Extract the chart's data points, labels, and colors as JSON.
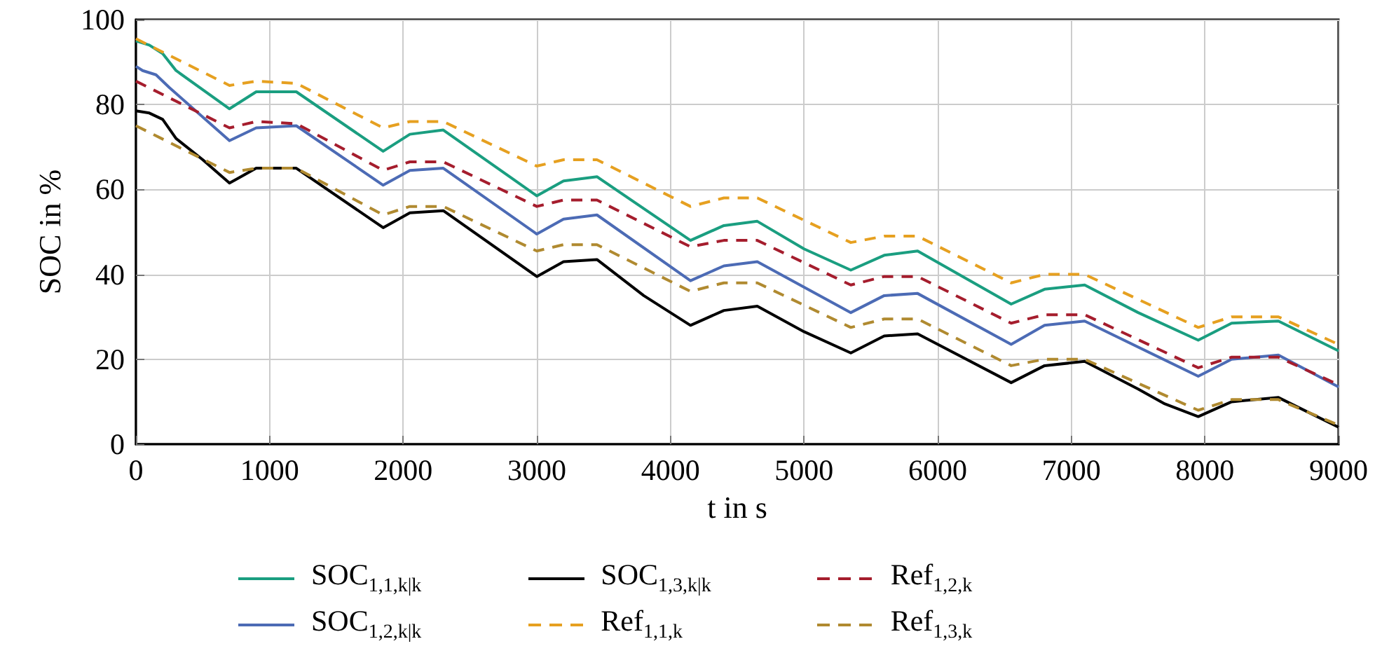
{
  "chart_data": {
    "type": "line",
    "xlabel": "t in s",
    "ylabel": "SOC in %",
    "xlim": [
      0,
      9000
    ],
    "xticks": [
      0,
      1000,
      2000,
      3000,
      4000,
      5000,
      6000,
      7000,
      8000,
      9000
    ],
    "ylim": [
      0,
      100
    ],
    "yticks": [
      0,
      20,
      40,
      60,
      80,
      100
    ],
    "grid": true,
    "legend": "bottom",
    "marker": "none",
    "series": [
      {
        "name": "SOC$_{1,1,k|k}$",
        "color": "#1a9e80",
        "line_style": "solid",
        "x": [
          0,
          100,
          200,
          300,
          700,
          900,
          1200,
          1850,
          2050,
          2300,
          3000,
          3200,
          3450,
          4150,
          4400,
          4650,
          5000,
          5350,
          5600,
          5850,
          6550,
          6800,
          7100,
          7500,
          7950,
          8200,
          8550,
          9000
        ],
        "values": [
          95,
          94,
          92,
          88,
          79,
          83,
          83,
          69,
          73,
          74,
          58.5,
          62,
          63,
          48,
          51.5,
          52.5,
          46,
          41,
          44.5,
          45.5,
          33,
          36.5,
          37.5,
          31,
          24.5,
          28.5,
          29,
          22
        ]
      },
      {
        "name": "SOC$_{1,2,k|k}$",
        "color": "#4c6bb5",
        "line_style": "solid",
        "x": [
          0,
          50,
          150,
          250,
          700,
          900,
          1200,
          1850,
          2050,
          2300,
          3000,
          3200,
          3450,
          4150,
          4400,
          4650,
          5350,
          5600,
          5850,
          6550,
          6800,
          7100,
          7950,
          8200,
          8550,
          9000
        ],
        "values": [
          89,
          88,
          87,
          84,
          71.5,
          74.5,
          75,
          61,
          64.5,
          65,
          49.5,
          53,
          54,
          38.5,
          42,
          43,
          31,
          35,
          35.5,
          23.5,
          28,
          29,
          16,
          20,
          21,
          13.5
        ]
      },
      {
        "name": "SOC$_{1,3,k|k}$",
        "color": "#000000",
        "line_style": "solid",
        "x": [
          0,
          100,
          200,
          300,
          500,
          700,
          900,
          1200,
          1850,
          2050,
          2300,
          3000,
          3200,
          3450,
          3800,
          4150,
          4400,
          4650,
          5000,
          5350,
          5600,
          5850,
          6550,
          6800,
          7100,
          7500,
          7700,
          7950,
          8200,
          8550,
          9000
        ],
        "values": [
          78.5,
          78,
          76.5,
          72,
          67,
          61.5,
          65,
          65,
          51,
          54.5,
          55,
          39.5,
          43,
          43.5,
          35,
          28,
          31.5,
          32.5,
          26.5,
          21.5,
          25.5,
          26,
          14.5,
          18.5,
          19.5,
          13,
          9.5,
          6.5,
          10,
          11,
          4
        ]
      },
      {
        "name": "Ref$_{1,1,k}$",
        "color": "#e6a020",
        "line_style": "dashed",
        "x": [
          0,
          700,
          900,
          1200,
          1850,
          2050,
          2300,
          3000,
          3200,
          3450,
          4150,
          4400,
          4650,
          5350,
          5600,
          5850,
          6550,
          6800,
          7100,
          7950,
          8200,
          8550,
          9000
        ],
        "values": [
          95.5,
          84.5,
          85.5,
          85,
          74.5,
          76,
          76,
          65.5,
          67,
          67,
          56,
          58,
          58,
          47.5,
          49,
          49,
          38,
          40,
          40,
          27.5,
          30,
          30,
          23.5
        ]
      },
      {
        "name": "Ref$_{1,2,k}$",
        "color": "#a51d2d",
        "line_style": "dashed",
        "x": [
          0,
          700,
          900,
          1200,
          1850,
          2050,
          2300,
          3000,
          3200,
          3450,
          4150,
          4400,
          4650,
          5350,
          5600,
          5850,
          6550,
          6800,
          7100,
          7950,
          8200,
          8550,
          9000
        ],
        "values": [
          85.5,
          74.5,
          76,
          75.5,
          64.5,
          66.5,
          66.5,
          56,
          57.5,
          57.5,
          46.5,
          48,
          48,
          37.5,
          39.5,
          39.5,
          28.5,
          30.5,
          30.5,
          18,
          20.5,
          20.5,
          14
        ]
      },
      {
        "name": "Ref$_{1,3,k}$",
        "color": "#b08a30",
        "line_style": "dashed",
        "x": [
          0,
          700,
          900,
          1200,
          1850,
          2050,
          2300,
          3000,
          3200,
          3450,
          4150,
          4400,
          4650,
          5350,
          5600,
          5850,
          6550,
          6800,
          7100,
          7950,
          8200,
          8550,
          9000
        ],
        "values": [
          75,
          64,
          65,
          65,
          54,
          56,
          56,
          45.5,
          47,
          47,
          36,
          38,
          38,
          27.5,
          29.5,
          29.5,
          18.5,
          20,
          20,
          8,
          10.5,
          10.5,
          4.5
        ]
      }
    ]
  }
}
